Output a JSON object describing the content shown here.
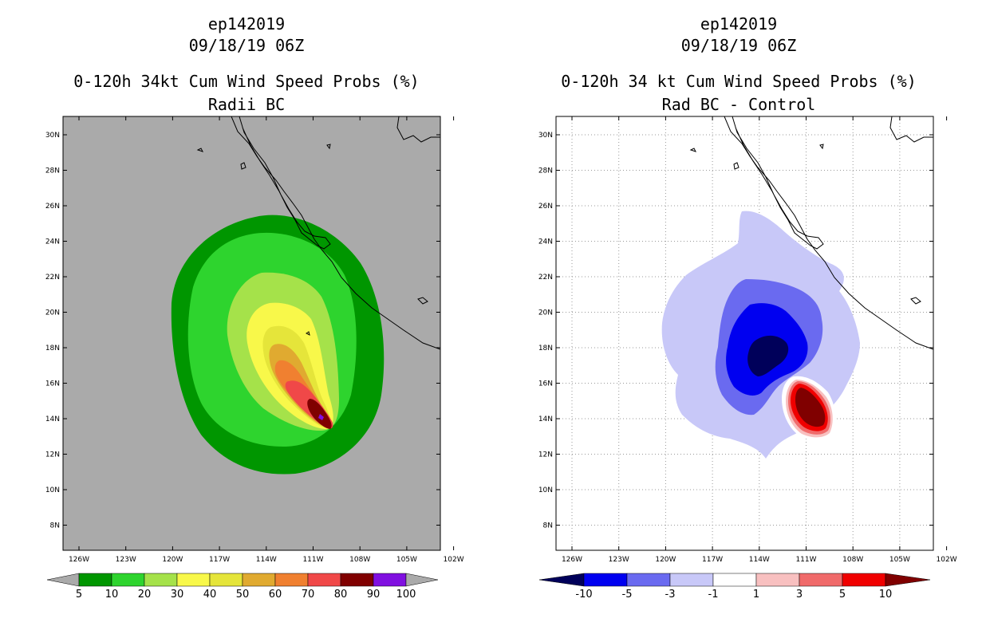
{
  "left_panel": {
    "storm_id": "ep142019",
    "datetime": "09/18/19 06Z",
    "title": "0-120h 34kt Cum Wind Speed Probs (%)",
    "subtitle": "Radii BC",
    "lat_ticks": [
      "30N",
      "28N",
      "26N",
      "24N",
      "22N",
      "20N",
      "18N",
      "16N",
      "14N",
      "12N",
      "10N",
      "8N"
    ],
    "lon_ticks": [
      "126W",
      "123W",
      "120W",
      "117W",
      "114W",
      "111W",
      "108W",
      "105W",
      "102W"
    ],
    "colorbar_labels": [
      "5",
      "10",
      "20",
      "30",
      "40",
      "50",
      "60",
      "70",
      "80",
      "90",
      "100"
    ],
    "colorbar_colors": [
      "#009600",
      "#2ed42e",
      "#a5e24a",
      "#f8f84a",
      "#e5e53a",
      "#e0aa30",
      "#f08030",
      "#f04848",
      "#800000",
      "#8010e0"
    ],
    "background_color": "#aaaaaa"
  },
  "right_panel": {
    "storm_id": "ep142019",
    "datetime": "09/18/19 06Z",
    "title": "0-120h 34 kt Cum Wind Speed Probs (%)",
    "subtitle": "Rad BC - Control",
    "lat_ticks": [
      "30N",
      "28N",
      "26N",
      "24N",
      "22N",
      "20N",
      "18N",
      "16N",
      "14N",
      "12N",
      "10N",
      "8N"
    ],
    "lon_ticks": [
      "126W",
      "123W",
      "120W",
      "117W",
      "114W",
      "111W",
      "108W",
      "105W",
      "102W"
    ],
    "colorbar_labels": [
      "-10",
      "-5",
      "-3",
      "-1",
      "1",
      "3",
      "5",
      "10"
    ],
    "colorbar_colors": [
      "#00005a",
      "#0000f0",
      "#6a6af0",
      "#c8c8f8",
      "#ffffff",
      "#f8c0c0",
      "#f06a6a",
      "#f00000",
      "#800000"
    ]
  }
}
